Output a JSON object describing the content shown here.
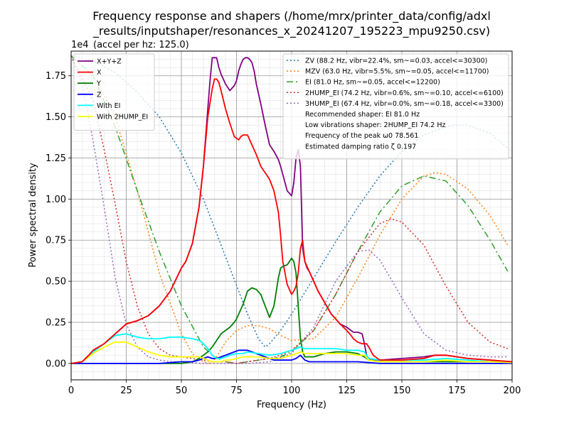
{
  "chart_data": {
    "type": "line",
    "title_lines": [
      "Frequency response and shapers (/home/mrx/printer_data/config/adxl",
      "_results/inputshaper/resonances_x_20241207_195223_mpu9250.csv)"
    ],
    "subtitle": "(accel per hz: 125.0)",
    "y_offset_text": "1e4",
    "xlabel": "Frequency (Hz)",
    "ylabel": "Power spectral density",
    "xlim": [
      0,
      200
    ],
    "ylim": [
      -0.1,
      1.9
    ],
    "x_ticks": [
      0,
      25,
      50,
      75,
      100,
      125,
      150,
      175,
      200
    ],
    "x_tick_labels": [
      "0",
      "25",
      "50",
      "75",
      "100",
      "125",
      "150",
      "175",
      "200"
    ],
    "y_ticks": [
      0.0,
      0.25,
      0.5,
      0.75,
      1.0,
      1.25,
      1.5,
      1.75
    ],
    "y_tick_labels": [
      "0.00",
      "0.25",
      "0.50",
      "0.75",
      "1.00",
      "1.25",
      "1.50",
      "1.75"
    ],
    "grid": true,
    "minor_grid": true,
    "legend_left_position": "top-left",
    "legend_right_position": "top-right",
    "series": [
      {
        "name": "X+Y+Z",
        "color": "#800080",
        "style": "solid",
        "x": [
          0,
          5,
          8,
          10,
          15,
          20,
          25,
          30,
          35,
          40,
          45,
          50,
          52,
          55,
          58,
          60,
          62,
          63,
          64,
          65,
          66,
          67,
          68,
          70,
          72,
          74,
          75,
          76,
          77,
          78,
          79,
          80,
          81,
          82,
          83,
          84,
          86,
          88,
          90,
          92,
          94,
          95,
          96,
          97,
          98,
          100,
          101,
          102,
          103,
          104,
          105,
          106,
          107,
          108,
          110,
          112,
          115,
          118,
          120,
          122,
          125,
          127,
          128,
          130,
          132,
          133,
          134,
          135,
          137,
          140,
          150,
          160,
          165,
          170,
          180,
          190,
          200
        ],
        "y": [
          0.0,
          0.01,
          0.05,
          0.08,
          0.12,
          0.18,
          0.24,
          0.26,
          0.29,
          0.35,
          0.44,
          0.58,
          0.62,
          0.73,
          0.95,
          1.2,
          1.55,
          1.72,
          1.86,
          1.86,
          1.86,
          1.8,
          1.76,
          1.7,
          1.66,
          1.69,
          1.72,
          1.78,
          1.82,
          1.85,
          1.86,
          1.86,
          1.85,
          1.83,
          1.78,
          1.7,
          1.58,
          1.45,
          1.33,
          1.29,
          1.24,
          1.2,
          1.15,
          1.1,
          1.05,
          1.02,
          1.1,
          1.25,
          1.3,
          1.2,
          0.7,
          0.62,
          0.58,
          0.56,
          0.5,
          0.44,
          0.37,
          0.3,
          0.27,
          0.24,
          0.22,
          0.2,
          0.19,
          0.19,
          0.18,
          0.12,
          0.05,
          0.03,
          0.02,
          0.02,
          0.03,
          0.04,
          0.05,
          0.05,
          0.03,
          0.02,
          0.01
        ]
      },
      {
        "name": "X",
        "color": "#ff0000",
        "style": "solid",
        "x": [
          0,
          5,
          8,
          10,
          15,
          20,
          25,
          30,
          35,
          40,
          45,
          50,
          52,
          55,
          58,
          60,
          62,
          64,
          65,
          66,
          67,
          68,
          70,
          72,
          74,
          75,
          76,
          77,
          78,
          79,
          80,
          82,
          84,
          86,
          88,
          90,
          92,
          94,
          95,
          96,
          97,
          98,
          100,
          101,
          102,
          103,
          104,
          105,
          106,
          108,
          110,
          112,
          115,
          118,
          120,
          122,
          125,
          127,
          128,
          130,
          132,
          133,
          134,
          135,
          137,
          140,
          150,
          160,
          165,
          170,
          180,
          190,
          200
        ],
        "y": [
          0.0,
          0.01,
          0.05,
          0.08,
          0.12,
          0.18,
          0.24,
          0.26,
          0.29,
          0.35,
          0.44,
          0.58,
          0.62,
          0.73,
          0.95,
          1.2,
          1.5,
          1.67,
          1.73,
          1.73,
          1.71,
          1.66,
          1.55,
          1.46,
          1.38,
          1.37,
          1.36,
          1.38,
          1.39,
          1.39,
          1.39,
          1.33,
          1.27,
          1.2,
          1.16,
          1.12,
          1.05,
          0.92,
          0.78,
          0.62,
          0.55,
          0.48,
          0.42,
          0.44,
          0.47,
          0.55,
          0.7,
          0.75,
          0.62,
          0.56,
          0.5,
          0.44,
          0.37,
          0.3,
          0.27,
          0.24,
          0.2,
          0.17,
          0.15,
          0.13,
          0.12,
          0.12,
          0.12,
          0.1,
          0.05,
          0.02,
          0.02,
          0.03,
          0.05,
          0.05,
          0.03,
          0.02,
          0.01
        ]
      },
      {
        "name": "Y",
        "color": "#008000",
        "style": "solid",
        "x": [
          0,
          10,
          20,
          30,
          40,
          50,
          55,
          58,
          60,
          62,
          64,
          65,
          66,
          68,
          70,
          72,
          74,
          75,
          76,
          78,
          80,
          82,
          84,
          86,
          88,
          90,
          92,
          94,
          95,
          96,
          98,
          100,
          101,
          102,
          103,
          104,
          105,
          106,
          108,
          110,
          115,
          120,
          125,
          130,
          133,
          135,
          140,
          160,
          180,
          200
        ],
        "y": [
          0.0,
          0.0,
          0.0,
          0.0,
          0.0,
          0.0,
          0.01,
          0.03,
          0.05,
          0.07,
          0.1,
          0.12,
          0.14,
          0.18,
          0.2,
          0.22,
          0.25,
          0.27,
          0.3,
          0.36,
          0.44,
          0.46,
          0.45,
          0.42,
          0.35,
          0.28,
          0.35,
          0.52,
          0.58,
          0.59,
          0.6,
          0.64,
          0.62,
          0.55,
          0.35,
          0.15,
          0.07,
          0.04,
          0.04,
          0.04,
          0.06,
          0.07,
          0.07,
          0.06,
          0.04,
          0.02,
          0.01,
          0.01,
          0.01,
          0.01
        ]
      },
      {
        "name": "Z",
        "color": "#0000ff",
        "style": "solid",
        "x": [
          0,
          20,
          40,
          45,
          50,
          55,
          58,
          60,
          62,
          64,
          66,
          68,
          70,
          72,
          74,
          76,
          78,
          80,
          82,
          84,
          86,
          88,
          90,
          92,
          94,
          96,
          98,
          100,
          102,
          104,
          106,
          108,
          110,
          115,
          120,
          125,
          130,
          135,
          140,
          200
        ],
        "y": [
          0.0,
          0.0,
          0.0,
          0.005,
          0.01,
          0.01,
          0.02,
          0.03,
          0.04,
          0.03,
          0.03,
          0.04,
          0.05,
          0.06,
          0.07,
          0.08,
          0.08,
          0.08,
          0.07,
          0.06,
          0.05,
          0.04,
          0.03,
          0.02,
          0.02,
          0.02,
          0.02,
          0.02,
          0.03,
          0.05,
          0.02,
          0.01,
          0.01,
          0.01,
          0.01,
          0.01,
          0.01,
          0.005,
          0.0,
          0.0
        ]
      },
      {
        "name": "With EI",
        "color": "#00ffff",
        "style": "solid",
        "x": [
          0,
          5,
          8,
          10,
          15,
          20,
          25,
          30,
          35,
          40,
          45,
          50,
          55,
          58,
          60,
          62,
          64,
          65,
          66,
          68,
          70,
          72,
          75,
          78,
          80,
          85,
          90,
          95,
          100,
          102,
          104,
          106,
          108,
          110,
          115,
          120,
          125,
          130,
          133,
          135,
          140,
          150,
          160,
          170,
          180,
          190,
          200
        ],
        "y": [
          0.0,
          0.01,
          0.04,
          0.07,
          0.12,
          0.17,
          0.18,
          0.16,
          0.15,
          0.15,
          0.16,
          0.16,
          0.15,
          0.14,
          0.12,
          0.09,
          0.05,
          0.04,
          0.03,
          0.03,
          0.04,
          0.05,
          0.06,
          0.06,
          0.07,
          0.06,
          0.05,
          0.06,
          0.08,
          0.09,
          0.1,
          0.09,
          0.09,
          0.09,
          0.09,
          0.09,
          0.08,
          0.08,
          0.07,
          0.03,
          0.02,
          0.02,
          0.02,
          0.03,
          0.02,
          0.01,
          0.01
        ]
      },
      {
        "name": "With 2HUMP_EI",
        "color": "#ffff00",
        "style": "solid",
        "x": [
          0,
          5,
          8,
          10,
          15,
          20,
          25,
          30,
          35,
          40,
          45,
          50,
          55,
          58,
          60,
          62,
          64,
          65,
          66,
          68,
          70,
          72,
          75,
          78,
          80,
          85,
          90,
          95,
          100,
          102,
          104,
          106,
          108,
          110,
          115,
          120,
          125,
          130,
          133,
          135,
          140,
          150,
          160,
          170,
          180,
          190,
          200
        ],
        "y": [
          0.0,
          0.01,
          0.04,
          0.06,
          0.1,
          0.13,
          0.13,
          0.1,
          0.07,
          0.05,
          0.04,
          0.04,
          0.04,
          0.04,
          0.03,
          0.02,
          0.01,
          0.01,
          0.01,
          0.01,
          0.02,
          0.02,
          0.03,
          0.04,
          0.04,
          0.04,
          0.03,
          0.03,
          0.05,
          0.06,
          0.07,
          0.06,
          0.06,
          0.06,
          0.06,
          0.06,
          0.06,
          0.05,
          0.05,
          0.02,
          0.01,
          0.01,
          0.01,
          0.02,
          0.01,
          0.01,
          0.005
        ]
      }
    ],
    "shapers": [
      {
        "name": "ZV (88.2 Hz, vibr=22.4%, sm~=0.03, accel<=30300)",
        "color": "#1f77b4",
        "style": "dotted",
        "x": [
          0,
          10,
          20,
          30,
          40,
          50,
          60,
          70,
          80,
          85,
          88,
          90,
          95,
          100,
          110,
          120,
          130,
          140,
          150,
          160,
          170,
          175,
          180,
          190,
          198
        ],
        "y": [
          1.87,
          1.84,
          1.77,
          1.65,
          1.5,
          1.28,
          1.0,
          0.65,
          0.3,
          0.15,
          0.1,
          0.12,
          0.2,
          0.3,
          0.52,
          0.74,
          0.95,
          1.14,
          1.29,
          1.39,
          1.44,
          1.45,
          1.45,
          1.4,
          1.31
        ]
      },
      {
        "name": "MZV (63.0 Hz, vibr=5.5%, sm~=0.05, accel<=11700)",
        "color": "#ff7f0e",
        "style": "dotted",
        "x": [
          0,
          10,
          20,
          30,
          40,
          50,
          55,
          60,
          63,
          66,
          70,
          75,
          80,
          85,
          90,
          95,
          100,
          110,
          120,
          130,
          140,
          150,
          160,
          165,
          170,
          180,
          190,
          198
        ],
        "y": [
          1.87,
          1.75,
          1.5,
          1.05,
          0.55,
          0.18,
          0.06,
          0.01,
          0.0,
          0.04,
          0.13,
          0.2,
          0.23,
          0.23,
          0.21,
          0.17,
          0.14,
          0.15,
          0.28,
          0.52,
          0.78,
          1.0,
          1.14,
          1.16,
          1.15,
          1.06,
          0.9,
          0.72
        ]
      },
      {
        "name": "EI (81.0 Hz, sm~=0.05, accel<=12200)",
        "color": "#2ca02c",
        "style": "dashdot",
        "x": [
          0,
          10,
          20,
          30,
          40,
          50,
          60,
          65,
          70,
          75,
          80,
          85,
          90,
          95,
          100,
          110,
          120,
          130,
          140,
          150,
          160,
          170,
          180,
          190,
          198
        ],
        "y": [
          1.87,
          1.75,
          1.44,
          1.05,
          0.68,
          0.35,
          0.1,
          0.04,
          0.01,
          0.0,
          0.01,
          0.02,
          0.03,
          0.04,
          0.07,
          0.2,
          0.42,
          0.68,
          0.92,
          1.08,
          1.14,
          1.11,
          0.96,
          0.75,
          0.56
        ]
      },
      {
        "name": "2HUMP_EI (74.2 Hz, vibr=0.6%, sm~=0.10, accel<=6100)",
        "color": "#d62728",
        "style": "dotted",
        "x": [
          0,
          10,
          15,
          20,
          25,
          30,
          35,
          40,
          45,
          50,
          55,
          60,
          65,
          70,
          75,
          80,
          85,
          90,
          95,
          100,
          110,
          120,
          130,
          140,
          145,
          150,
          160,
          170,
          180,
          190,
          198
        ],
        "y": [
          1.87,
          1.6,
          1.3,
          0.97,
          0.62,
          0.35,
          0.18,
          0.09,
          0.05,
          0.04,
          0.03,
          0.02,
          0.01,
          0.01,
          0.0,
          0.01,
          0.02,
          0.03,
          0.05,
          0.08,
          0.2,
          0.42,
          0.68,
          0.85,
          0.88,
          0.86,
          0.72,
          0.47,
          0.25,
          0.13,
          0.09
        ]
      },
      {
        "name": "3HUMP_EI (67.4 Hz, vibr=0.0%, sm~=0.18, accel<=3300)",
        "color": "#9467bd",
        "style": "dotted",
        "x": [
          0,
          5,
          10,
          15,
          20,
          25,
          30,
          35,
          40,
          45,
          50,
          60,
          70,
          80,
          90,
          100,
          110,
          120,
          130,
          135,
          140,
          150,
          160,
          170,
          180,
          190,
          198
        ],
        "y": [
          1.87,
          1.7,
          1.35,
          0.95,
          0.52,
          0.24,
          0.1,
          0.04,
          0.02,
          0.01,
          0.01,
          0.0,
          0.0,
          0.0,
          0.01,
          0.06,
          0.22,
          0.5,
          0.68,
          0.69,
          0.63,
          0.4,
          0.18,
          0.08,
          0.05,
          0.04,
          0.04
        ]
      }
    ],
    "info_lines": [
      "Recommended shaper: EI 81.0 Hz",
      "Low vibrations shaper: 2HUMP_EI 74.2 Hz",
      "Frequency of the peak ω0 78.561",
      "Estimated damping ratio ζ 0.197"
    ]
  }
}
